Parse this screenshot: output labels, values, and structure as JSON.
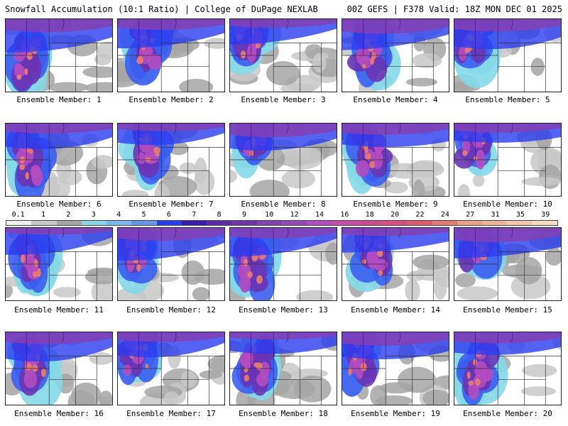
{
  "header": {
    "title": "Snowfall Accumulation (10:1 Ratio) | College of DuPage NEXLAB",
    "run_info": "00Z GEFS | F378 Valid: 18Z MON DEC 01 2025"
  },
  "colorbar": {
    "labels": [
      "0.1",
      "1",
      "2",
      "3",
      "4",
      "5",
      "6",
      "7",
      "8",
      "9",
      "10",
      "12",
      "14",
      "16",
      "18",
      "20",
      "22",
      "24",
      "27",
      "31",
      "35",
      "39"
    ],
    "colors": [
      "#f0f0f0",
      "#c8c8c8",
      "#a4a4a4",
      "#84d8e8",
      "#7ab8f0",
      "#6496ec",
      "#2a3cf0",
      "#3a1cb4",
      "#5a2ca8",
      "#6e34ac",
      "#8440b4",
      "#9a48bc",
      "#b44cc0",
      "#c84ca8",
      "#d04a90",
      "#d84f80",
      "#e05a74",
      "#e47a74",
      "#eca08a",
      "#f0b49a",
      "#f4c8ae",
      "#f8dcc6"
    ]
  },
  "members": [
    {
      "label": "Ensemble Member: 1"
    },
    {
      "label": "Ensemble Member: 2"
    },
    {
      "label": "Ensemble Member: 3"
    },
    {
      "label": "Ensemble Member: 4"
    },
    {
      "label": "Ensemble Member: 5"
    },
    {
      "label": "Ensemble Member: 6"
    },
    {
      "label": "Ensemble Member: 7"
    },
    {
      "label": "Ensemble Member: 8"
    },
    {
      "label": "Ensemble Member: 9"
    },
    {
      "label": "Ensemble Member: 10"
    },
    {
      "label": "Ensemble Member: 11"
    },
    {
      "label": "Ensemble Member: 12"
    },
    {
      "label": "Ensemble Member: 13"
    },
    {
      "label": "Ensemble Member: 14"
    },
    {
      "label": "Ensemble Member: 15"
    },
    {
      "label": "Ensemble Member: 16"
    },
    {
      "label": "Ensemble Member: 17"
    },
    {
      "label": "Ensemble Member: 18"
    },
    {
      "label": "Ensemble Member: 19"
    },
    {
      "label": "Ensemble Member: 20"
    }
  ]
}
